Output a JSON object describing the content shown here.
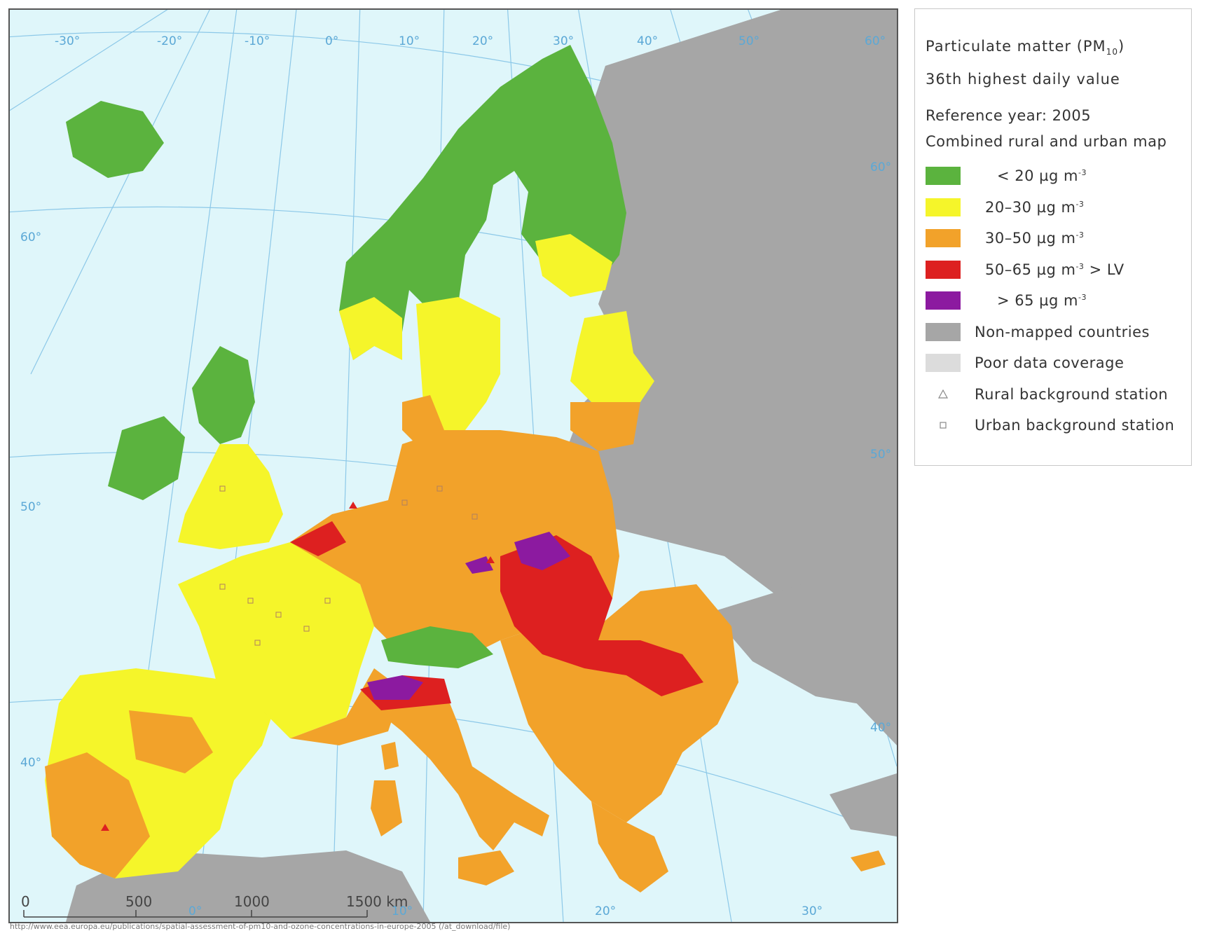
{
  "map": {
    "longitude_labels": [
      "-30°",
      "-20°",
      "-10°",
      "0°",
      "10°",
      "20°",
      "30°",
      "40°",
      "50°",
      "60°"
    ],
    "latitude_labels": [
      "60°",
      "50°",
      "40°",
      "60°",
      "50°",
      "40°"
    ],
    "bottom_longitude_labels": [
      "0°",
      "10°",
      "20°",
      "30°"
    ],
    "scale_bar": [
      "0",
      "500",
      "1000",
      "1500 km"
    ],
    "colors": {
      "sea": "#dff6fa",
      "graticule": "#8cc8e8",
      "non_mapped": "#a6a6a6",
      "lt20": "#5bb33e",
      "20_30": "#f5f52a",
      "30_50": "#f2a22a",
      "50_65": "#dd2020",
      "gt65": "#8c1aa0"
    }
  },
  "legend": {
    "title_line1_prefix": "Particulate matter (PM",
    "title_line1_sub": "10",
    "title_line1_suffix": ")",
    "title_line2": "36th highest daily value",
    "reference": "Reference year: 2005",
    "map_type": "Combined rural and urban map",
    "unit_superscript": "-3",
    "classes": [
      {
        "label": "< 20 µg m",
        "suffix": "",
        "color": "#5bb33e"
      },
      {
        "label": "20–30 µg m",
        "suffix": "",
        "color": "#f5f52a"
      },
      {
        "label": "30–50 µg m",
        "suffix": "",
        "color": "#f2a22a"
      },
      {
        "label": "50–65 µg m",
        "suffix": " > LV",
        "color": "#dd2020"
      },
      {
        "label": "> 65 µg m",
        "suffix": "",
        "color": "#8c1aa0"
      }
    ],
    "other": [
      {
        "label": "Non-mapped countries",
        "color": "#a6a6a6"
      },
      {
        "label": "Poor data coverage",
        "color": "#dcdcdc"
      }
    ],
    "symbols": [
      {
        "label": "Rural background station",
        "icon": "triangle-icon"
      },
      {
        "label": "Urban background station",
        "icon": "square-icon"
      }
    ]
  },
  "source_url": "http://www.eea.europa.eu/publications/spatial-assessment-of-pm10-and-ozone-concentrations-in-europe-2005 (/at_download/file)"
}
